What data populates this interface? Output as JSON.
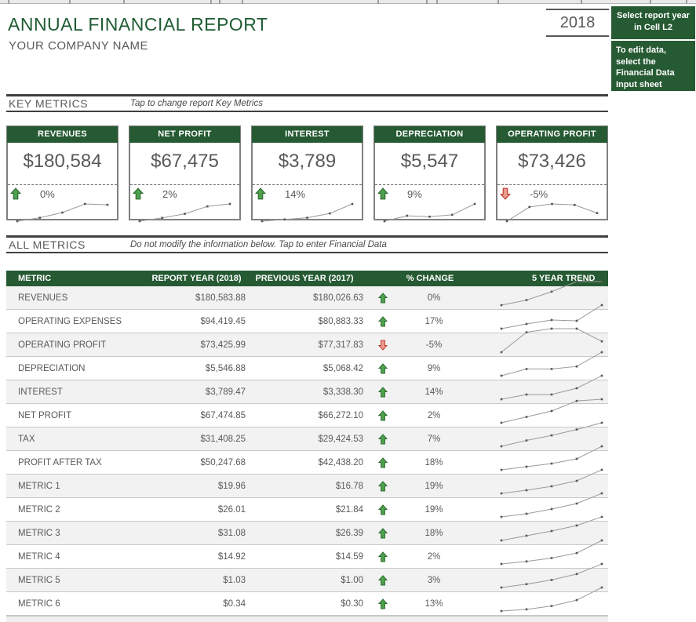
{
  "header": {
    "title": "ANNUAL FINANCIAL REPORT",
    "company": "YOUR COMPANY NAME",
    "year": "2018",
    "note1": "Select  report year in Cell L2",
    "note2": "To edit data, select the Financial Data Input sheet"
  },
  "colors": {
    "accent_green": "#265A33",
    "title_green": "#1F5C33",
    "text_gray": "#595959",
    "up_arrow_fill": "#4EA14E",
    "up_arrow_stroke": "#2C6B2F",
    "down_arrow_fill": "#EC9C8F",
    "down_arrow_stroke": "#C0392B",
    "row_alt": "#F2F2F2"
  },
  "sections": {
    "key": {
      "label": "KEY METRICS",
      "hint": "Tap to change report Key Metrics"
    },
    "all": {
      "label": "ALL METRICS",
      "hint": "Do not modify the information below. Tap to enter Financial Data"
    }
  },
  "cards": [
    {
      "label": "REVENUES",
      "value": "$180,584",
      "change": "0%",
      "direction": "up",
      "trend": [
        10,
        14,
        20,
        30,
        29
      ]
    },
    {
      "label": "NET PROFIT",
      "value": "$67,475",
      "change": "2%",
      "direction": "up",
      "trend": [
        10,
        14,
        19,
        28,
        31
      ]
    },
    {
      "label": "INTEREST",
      "value": "$3,789",
      "change": "14%",
      "direction": "up",
      "trend": [
        10,
        12,
        14,
        19,
        30
      ]
    },
    {
      "label": "DEPRECIATION",
      "value": "$5,547",
      "change": "9%",
      "direction": "up",
      "trend": [
        10,
        16,
        15,
        17,
        29
      ]
    },
    {
      "label": "OPERATING PROFIT",
      "value": "$73,426",
      "change": "-5%",
      "direction": "down",
      "trend": [
        10,
        24,
        27,
        26,
        18
      ]
    }
  ],
  "table": {
    "columns": [
      "METRIC",
      "REPORT YEAR (2018)",
      "PREVIOUS YEAR (2017)",
      "% CHANGE",
      "5 YEAR TREND"
    ],
    "rows": [
      {
        "metric": "REVENUES",
        "report": "$180,583.88",
        "previous": "$180,026.63",
        "direction": "up",
        "change": "0%",
        "trend": [
          10,
          16,
          26,
          38,
          38
        ]
      },
      {
        "metric": "OPERATING EXPENSES",
        "report": "$94,419.45",
        "previous": "$80,883.33",
        "direction": "up",
        "change": "17%",
        "trend": [
          10,
          16,
          21,
          20,
          40
        ]
      },
      {
        "metric": "OPERATING PROFIT",
        "report": "$73,425.99",
        "previous": "$77,317.83",
        "direction": "down",
        "change": "-5%",
        "trend": [
          8,
          30,
          34,
          34,
          20
        ]
      },
      {
        "metric": "DEPRECIATION",
        "report": "$5,546.88",
        "previous": "$5,068.42",
        "direction": "up",
        "change": "9%",
        "trend": [
          10,
          18,
          18,
          21,
          38
        ]
      },
      {
        "metric": "INTEREST",
        "report": "$3,789.47",
        "previous": "$3,338.30",
        "direction": "up",
        "change": "14%",
        "trend": [
          10,
          16,
          16,
          24,
          40
        ]
      },
      {
        "metric": "NET PROFIT",
        "report": "$67,474.85",
        "previous": "$66,272.10",
        "direction": "up",
        "change": "2%",
        "trend": [
          10,
          17,
          24,
          36,
          38
        ]
      },
      {
        "metric": "TAX",
        "report": "$31,408.25",
        "previous": "$29,424.53",
        "direction": "up",
        "change": "7%",
        "trend": [
          10,
          17,
          23,
          30,
          38
        ]
      },
      {
        "metric": "PROFIT AFTER TAX",
        "report": "$50,247.68",
        "previous": "$42,438.20",
        "direction": "up",
        "change": "18%",
        "trend": [
          10,
          14,
          18,
          24,
          40
        ]
      },
      {
        "metric": "METRIC 1",
        "report": "$19.96",
        "previous": "$16.78",
        "direction": "up",
        "change": "19%",
        "trend": [
          10,
          14,
          19,
          26,
          40
        ]
      },
      {
        "metric": "METRIC 2",
        "report": "$26.01",
        "previous": "$21.84",
        "direction": "up",
        "change": "19%",
        "trend": [
          10,
          14,
          20,
          27,
          40
        ]
      },
      {
        "metric": "METRIC 3",
        "report": "$31.08",
        "previous": "$26.39",
        "direction": "up",
        "change": "18%",
        "trend": [
          10,
          16,
          22,
          29,
          40
        ]
      },
      {
        "metric": "METRIC 4",
        "report": "$14.92",
        "previous": "$14.59",
        "direction": "up",
        "change": "2%",
        "trend": [
          10,
          13,
          17,
          23,
          38
        ]
      },
      {
        "metric": "METRIC 5",
        "report": "$1.03",
        "previous": "$1.00",
        "direction": "up",
        "change": "3%",
        "trend": [
          10,
          14,
          19,
          26,
          38
        ]
      },
      {
        "metric": "METRIC 6",
        "report": "$0.34",
        "previous": "$0.30",
        "direction": "up",
        "change": "13%",
        "trend": [
          10,
          12,
          16,
          23,
          38
        ]
      }
    ]
  }
}
